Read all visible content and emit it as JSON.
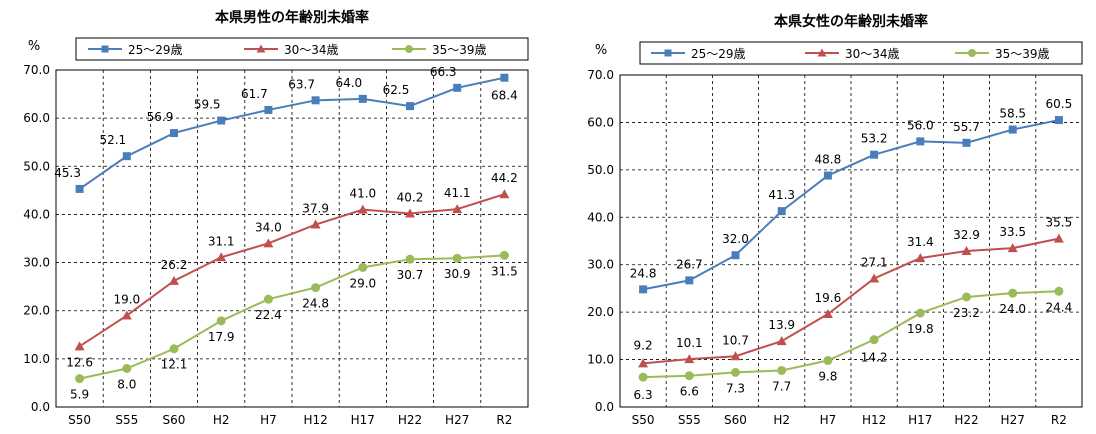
{
  "chart_data": [
    {
      "type": "line",
      "title": "本県男性の年齢別未婚率",
      "ylabel": "%",
      "ylim": [
        0,
        70
      ],
      "yticks": [
        "0.0",
        "10.0",
        "20.0",
        "30.0",
        "40.0",
        "50.0",
        "60.0",
        "70.0"
      ],
      "grid": true,
      "legend_position": "top",
      "categories": [
        "S50",
        "S55",
        "S60",
        "H2",
        "H7",
        "H12",
        "H17",
        "H22",
        "H27",
        "R2"
      ],
      "series": [
        {
          "name": "25～29歳",
          "color": "#4a7ebb",
          "marker": "square",
          "values": [
            45.3,
            52.1,
            56.9,
            59.5,
            61.7,
            63.7,
            64.0,
            62.5,
            66.3,
            68.4
          ],
          "labels": [
            "45.3",
            "52.1",
            "56.9",
            "59.5",
            "61.7",
            "63.7",
            "64.0",
            "62.5",
            "66.3",
            "68.4"
          ]
        },
        {
          "name": "30～34歳",
          "color": "#c0504d",
          "marker": "triangle",
          "values": [
            12.6,
            19.0,
            26.2,
            31.1,
            34.0,
            37.9,
            41.0,
            40.2,
            41.1,
            44.2
          ],
          "labels": [
            "12.6",
            "19.0",
            "26.2",
            "31.1",
            "34.0",
            "37.9",
            "41.0",
            "40.2",
            "41.1",
            "44.2"
          ]
        },
        {
          "name": "35～39歳",
          "color": "#9bbb59",
          "marker": "circle",
          "values": [
            5.9,
            8.0,
            12.1,
            17.9,
            22.4,
            24.8,
            29.0,
            30.7,
            30.9,
            31.5
          ],
          "labels": [
            "5.9",
            "8.0",
            "12.1",
            "17.9",
            "22.4",
            "24.8",
            "29.0",
            "30.7",
            "30.9",
            "31.5"
          ]
        }
      ]
    },
    {
      "type": "line",
      "title": "本県女性の年齢別未婚率",
      "ylabel": "%",
      "ylim": [
        0,
        70
      ],
      "yticks": [
        "0.0",
        "10.0",
        "20.0",
        "30.0",
        "40.0",
        "50.0",
        "60.0",
        "70.0"
      ],
      "grid": true,
      "legend_position": "top",
      "categories": [
        "S50",
        "S55",
        "S60",
        "H2",
        "H7",
        "H12",
        "H17",
        "H22",
        "H27",
        "R2"
      ],
      "series": [
        {
          "name": "25～29歳",
          "color": "#4a7ebb",
          "marker": "square",
          "values": [
            24.8,
            26.7,
            32.0,
            41.3,
            48.8,
            53.2,
            56.0,
            55.7,
            58.5,
            60.5
          ],
          "labels": [
            "24.8",
            "26.7",
            "32.0",
            "41.3",
            "48.8",
            "53.2",
            "56.0",
            "55.7",
            "58.5",
            "60.5"
          ]
        },
        {
          "name": "30～34歳",
          "color": "#c0504d",
          "marker": "triangle",
          "values": [
            9.2,
            10.1,
            10.7,
            13.9,
            19.6,
            27.1,
            31.4,
            32.9,
            33.5,
            35.5
          ],
          "labels": [
            "9.2",
            "10.1",
            "10.7",
            "13.9",
            "19.6",
            "27.1",
            "31.4",
            "32.9",
            "33.5",
            "35.5"
          ]
        },
        {
          "name": "35～39歳",
          "color": "#9bbb59",
          "marker": "circle",
          "values": [
            6.3,
            6.6,
            7.3,
            7.7,
            9.8,
            14.2,
            19.8,
            23.2,
            24.0,
            24.4
          ],
          "labels": [
            "6.3",
            "6.6",
            "7.3",
            "7.7",
            "9.8",
            "14.2",
            "19.8",
            "23.2",
            "24.0",
            "24.4"
          ]
        }
      ]
    }
  ]
}
